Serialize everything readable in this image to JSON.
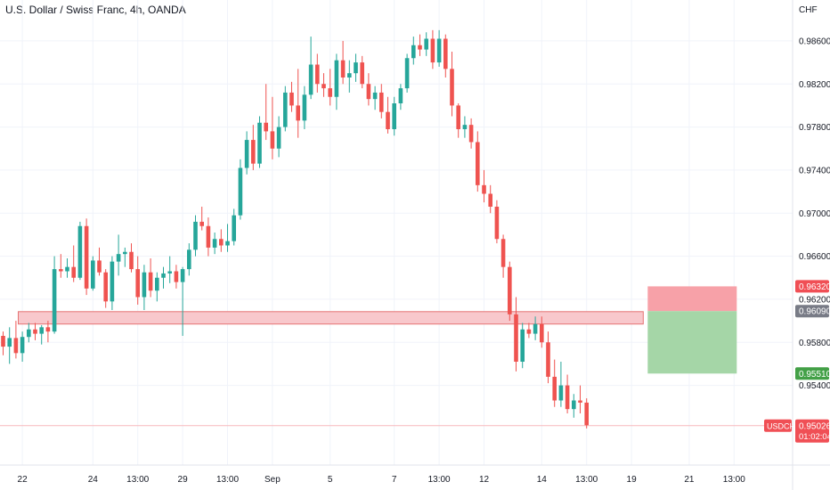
{
  "header": {
    "title": "U.S. Dollar / Swiss Franc, 4h, OANDA"
  },
  "colors": {
    "bull": "#26a69a",
    "bear": "#ef5350",
    "grid": "#f0f3fa",
    "axis_text": "#131722",
    "zone_fill": "#f8c8cc",
    "zone_stroke": "#e57373",
    "stop_fill": "#f7a1a8",
    "target_fill": "#a5d6a7",
    "badge_red": "#f04f55",
    "badge_grey": "#787b86",
    "badge_green": "#43a047",
    "price_line": "#f7b9bd"
  },
  "chart_data": {
    "type": "candlestick",
    "symbol": "USDCHF",
    "currency": "CHF",
    "timeframe": "4h",
    "ylim": [
      0.9466,
      0.9898
    ],
    "price_ticks": [
      "0.98600",
      "0.98200",
      "0.97800",
      "0.97400",
      "0.97000",
      "0.96600",
      "0.96200",
      "0.95800",
      "0.95400"
    ],
    "time_ticks": [
      {
        "label": "22",
        "i": 3
      },
      {
        "label": "24",
        "i": 14
      },
      {
        "label": "13:00",
        "i": 21
      },
      {
        "label": "29",
        "i": 28
      },
      {
        "label": "13:00",
        "i": 35
      },
      {
        "label": "Sep",
        "i": 42
      },
      {
        "label": "5",
        "i": 51
      },
      {
        "label": "7",
        "i": 61
      },
      {
        "label": "13:00",
        "i": 68
      },
      {
        "label": "12",
        "i": 75
      },
      {
        "label": "14",
        "i": 84
      },
      {
        "label": "13:00",
        "i": 91
      },
      {
        "label": "19",
        "i": 98
      },
      {
        "label": "21",
        "i": 107
      },
      {
        "label": "13:00",
        "i": 114
      }
    ],
    "candles": [
      [
        0.9586,
        0.959,
        0.9568,
        0.9576
      ],
      [
        0.9576,
        0.9594,
        0.956,
        0.9584
      ],
      [
        0.9584,
        0.96,
        0.9565,
        0.957
      ],
      [
        0.957,
        0.959,
        0.9562,
        0.9585
      ],
      [
        0.9585,
        0.9598,
        0.958,
        0.9592
      ],
      [
        0.9592,
        0.9598,
        0.9582,
        0.9588
      ],
      [
        0.9588,
        0.9596,
        0.9578,
        0.9594
      ],
      [
        0.9594,
        0.96,
        0.958,
        0.959
      ],
      [
        0.959,
        0.966,
        0.9588,
        0.9648
      ],
      [
        0.9648,
        0.9662,
        0.964,
        0.9646
      ],
      [
        0.9646,
        0.9658,
        0.964,
        0.965
      ],
      [
        0.965,
        0.967,
        0.9636,
        0.964
      ],
      [
        0.964,
        0.9692,
        0.9638,
        0.9688
      ],
      [
        0.9688,
        0.9695,
        0.9624,
        0.963
      ],
      [
        0.963,
        0.966,
        0.9628,
        0.9656
      ],
      [
        0.9656,
        0.9668,
        0.9642,
        0.9645
      ],
      [
        0.9645,
        0.9648,
        0.9612,
        0.9618
      ],
      [
        0.9618,
        0.966,
        0.961,
        0.9655
      ],
      [
        0.9655,
        0.968,
        0.9642,
        0.9662
      ],
      [
        0.9662,
        0.9668,
        0.965,
        0.9664
      ],
      [
        0.9664,
        0.9672,
        0.9645,
        0.9648
      ],
      [
        0.9648,
        0.966,
        0.9615,
        0.9622
      ],
      [
        0.9622,
        0.9652,
        0.961,
        0.9645
      ],
      [
        0.9645,
        0.9658,
        0.9622,
        0.9628
      ],
      [
        0.9628,
        0.9645,
        0.9618,
        0.964
      ],
      [
        0.964,
        0.965,
        0.963,
        0.9644
      ],
      [
        0.9644,
        0.966,
        0.9635,
        0.9646
      ],
      [
        0.9646,
        0.9652,
        0.963,
        0.9636
      ],
      [
        0.9636,
        0.965,
        0.9586,
        0.9648
      ],
      [
        0.9648,
        0.9672,
        0.9642,
        0.9666
      ],
      [
        0.9666,
        0.9698,
        0.966,
        0.9692
      ],
      [
        0.9692,
        0.9706,
        0.9684,
        0.9688
      ],
      [
        0.9688,
        0.9696,
        0.966,
        0.9668
      ],
      [
        0.9668,
        0.9682,
        0.9662,
        0.9676
      ],
      [
        0.9676,
        0.9685,
        0.9664,
        0.967
      ],
      [
        0.967,
        0.969,
        0.9664,
        0.9674
      ],
      [
        0.9674,
        0.9704,
        0.967,
        0.9698
      ],
      [
        0.9698,
        0.975,
        0.9694,
        0.9742
      ],
      [
        0.9742,
        0.9776,
        0.9736,
        0.9768
      ],
      [
        0.9768,
        0.9782,
        0.974,
        0.9746
      ],
      [
        0.9746,
        0.979,
        0.9742,
        0.9784
      ],
      [
        0.9784,
        0.982,
        0.9768,
        0.9776
      ],
      [
        0.9776,
        0.9808,
        0.975,
        0.976
      ],
      [
        0.976,
        0.979,
        0.9752,
        0.978
      ],
      [
        0.978,
        0.9818,
        0.9776,
        0.9812
      ],
      [
        0.9812,
        0.9822,
        0.9794,
        0.98
      ],
      [
        0.98,
        0.9834,
        0.977,
        0.9786
      ],
      [
        0.9786,
        0.9818,
        0.9778,
        0.981
      ],
      [
        0.981,
        0.9864,
        0.9806,
        0.9838
      ],
      [
        0.9838,
        0.9848,
        0.9812,
        0.982
      ],
      [
        0.982,
        0.983,
        0.9808,
        0.9816
      ],
      [
        0.9816,
        0.9834,
        0.98,
        0.9808
      ],
      [
        0.9808,
        0.9848,
        0.9796,
        0.9842
      ],
      [
        0.9842,
        0.986,
        0.982,
        0.9826
      ],
      [
        0.9826,
        0.9842,
        0.9812,
        0.983
      ],
      [
        0.983,
        0.9848,
        0.9822,
        0.984
      ],
      [
        0.984,
        0.9846,
        0.9816,
        0.982
      ],
      [
        0.982,
        0.983,
        0.98,
        0.9806
      ],
      [
        0.9806,
        0.9818,
        0.9796,
        0.9812
      ],
      [
        0.9812,
        0.982,
        0.9788,
        0.9794
      ],
      [
        0.9794,
        0.9808,
        0.9774,
        0.9778
      ],
      [
        0.9778,
        0.9808,
        0.9772,
        0.9802
      ],
      [
        0.9802,
        0.982,
        0.9796,
        0.9816
      ],
      [
        0.9816,
        0.9848,
        0.9812,
        0.9844
      ],
      [
        0.9844,
        0.9864,
        0.9838,
        0.9856
      ],
      [
        0.9856,
        0.9866,
        0.9846,
        0.9852
      ],
      [
        0.9852,
        0.9868,
        0.9846,
        0.9862
      ],
      [
        0.9862,
        0.987,
        0.9834,
        0.984
      ],
      [
        0.984,
        0.987,
        0.9836,
        0.9862
      ],
      [
        0.9862,
        0.9866,
        0.9826,
        0.9834
      ],
      [
        0.9834,
        0.985,
        0.979,
        0.98
      ],
      [
        0.98,
        0.9802,
        0.977,
        0.9778
      ],
      [
        0.9778,
        0.979,
        0.977,
        0.9782
      ],
      [
        0.9782,
        0.9788,
        0.976,
        0.9766
      ],
      [
        0.9766,
        0.9776,
        0.972,
        0.9726
      ],
      [
        0.9726,
        0.974,
        0.971,
        0.9718
      ],
      [
        0.9718,
        0.9726,
        0.97,
        0.9706
      ],
      [
        0.9706,
        0.9712,
        0.9672,
        0.9676
      ],
      [
        0.9676,
        0.968,
        0.964,
        0.965
      ],
      [
        0.965,
        0.9655,
        0.96,
        0.9606
      ],
      [
        0.9606,
        0.9622,
        0.9553,
        0.9562
      ],
      [
        0.9562,
        0.9598,
        0.9556,
        0.9592
      ],
      [
        0.9592,
        0.9598,
        0.9584,
        0.9588
      ],
      [
        0.9588,
        0.9604,
        0.9582,
        0.9597
      ],
      [
        0.9597,
        0.9604,
        0.9575,
        0.958
      ],
      [
        0.958,
        0.959,
        0.9542,
        0.9548
      ],
      [
        0.9548,
        0.9564,
        0.952,
        0.9526
      ],
      [
        0.9526,
        0.9562,
        0.952,
        0.954
      ],
      [
        0.954,
        0.955,
        0.9514,
        0.9518
      ],
      [
        0.9518,
        0.9532,
        0.951,
        0.9526
      ],
      [
        0.9526,
        0.954,
        0.9514,
        0.9524
      ],
      [
        0.9524,
        0.9528,
        0.95,
        0.9503
      ]
    ],
    "support_zone": {
      "low": 0.9597,
      "high": 0.96085,
      "start_index": 0,
      "end_index": 99
    },
    "position": {
      "entry": 0.9609,
      "stop": 0.9632,
      "target": 0.9551,
      "start_index": 99,
      "end_index": 114
    },
    "labels": {
      "stop": "0.96320",
      "entry": "0.96090",
      "target": "0.95510",
      "symbol": "USDCHF",
      "last_price": "0.95026",
      "countdown": "01:02:04",
      "last_value": 0.95026
    }
  }
}
